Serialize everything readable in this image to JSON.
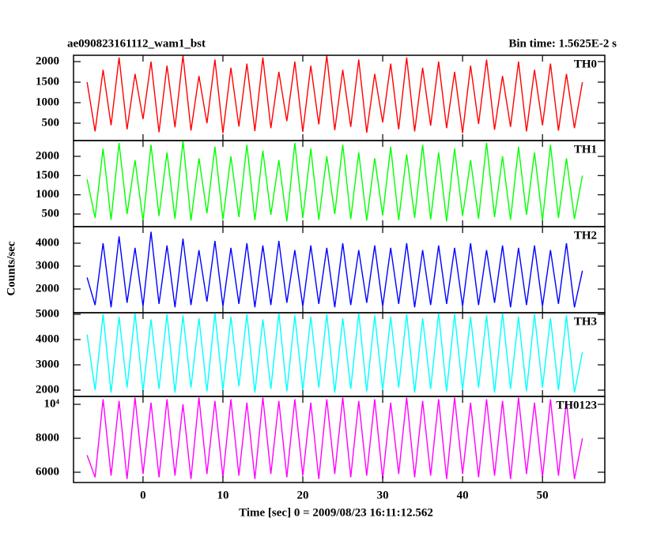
{
  "chart_data": {
    "type": "line",
    "title": "ae090823161112_wam1_bst",
    "subtitle": "Bin time: 1.5625E-2 s",
    "xlabel": "Time [sec] 0 = 2009/08/23 16:11:12.562",
    "ylabel": "Counts/sec",
    "xlim": [
      -8.7,
      57.8
    ],
    "xticks": [
      0,
      10,
      20,
      30,
      40,
      50
    ],
    "x": [
      -7,
      -6,
      -5,
      -4,
      -3,
      -2,
      -1,
      0,
      1,
      2,
      3,
      4,
      5,
      6,
      7,
      8,
      9,
      10,
      11,
      12,
      13,
      14,
      15,
      16,
      17,
      18,
      19,
      20,
      21,
      22,
      23,
      24,
      25,
      26,
      27,
      28,
      29,
      30,
      31,
      32,
      33,
      34,
      35,
      36,
      37,
      38,
      39,
      40,
      41,
      42,
      43,
      44,
      45,
      46,
      47,
      48,
      49,
      50,
      51,
      52,
      53,
      54,
      55
    ],
    "series": [
      {
        "name": "TH0",
        "color": "#ff0000",
        "ylim": [
          77,
          2154
        ],
        "yticks": [
          500,
          1000,
          1500,
          2000
        ],
        "values": [
          1500,
          300,
          1800,
          450,
          2100,
          350,
          1700,
          600,
          2000,
          280,
          1900,
          400,
          2150,
          320,
          1650,
          500,
          2050,
          260,
          1850,
          420,
          1950,
          310,
          2100,
          380,
          1750,
          550,
          2000,
          290,
          1900,
          470,
          2150,
          330,
          1800,
          410,
          2050,
          270,
          1700,
          520,
          1950,
          350,
          2100,
          300,
          1850,
          440,
          2000,
          380,
          1750,
          260,
          1900,
          480,
          2050,
          340,
          1650,
          410,
          2000,
          300,
          1800,
          450,
          1950,
          320,
          1700,
          380,
          1500
        ]
      },
      {
        "name": "TH1",
        "color": "#00ff00",
        "ylim": [
          172,
          2410
        ],
        "yticks": [
          500,
          1000,
          1500,
          2000
        ],
        "values": [
          1400,
          400,
          2200,
          350,
          2350,
          500,
          1900,
          320,
          2300,
          450,
          2100,
          380,
          2400,
          330,
          1950,
          520,
          2250,
          360,
          2000,
          420,
          2300,
          340,
          2150,
          480,
          1900,
          310,
          2350,
          400,
          2200,
          350,
          2000,
          500,
          2300,
          370,
          2100,
          330,
          1950,
          460,
          2250,
          340,
          2050,
          400,
          2300,
          360,
          2100,
          310,
          2200,
          450,
          1900,
          380,
          2350,
          420,
          2000,
          350,
          2250,
          480,
          2100,
          330,
          2300,
          400,
          1950,
          370,
          1500
        ]
      },
      {
        "name": "TH2",
        "color": "#0000ff",
        "ylim": [
          965,
          4724
        ],
        "yticks": [
          2000,
          3000,
          4000
        ],
        "values": [
          2500,
          1300,
          4000,
          1200,
          4300,
          1400,
          3800,
          1250,
          4500,
          1350,
          3900,
          1200,
          4200,
          1300,
          3700,
          1450,
          4100,
          1250,
          3800,
          1350,
          4000,
          1200,
          3900,
          1300,
          4100,
          1400,
          3700,
          1250,
          3900,
          1350,
          3800,
          1200,
          4000,
          1300,
          3700,
          1400,
          3900,
          1250,
          3800,
          1350,
          4000,
          1200,
          3700,
          1300,
          3900,
          1350,
          3800,
          1250,
          4000,
          1300,
          3700,
          1400,
          3900,
          1200,
          3800,
          1300,
          3900,
          1250,
          3700,
          1350,
          4000,
          1200,
          2800
        ]
      },
      {
        "name": "TH3",
        "color": "#00ffff",
        "ylim": [
          1750,
          5062
        ],
        "yticks": [
          2000,
          3000,
          4000,
          5000
        ],
        "values": [
          4200,
          2000,
          5000,
          1900,
          4900,
          2100,
          5050,
          1950,
          4800,
          2050,
          5000,
          1900,
          4950,
          2100,
          4850,
          1950,
          5050,
          2000,
          4900,
          2150,
          5000,
          1900,
          4800,
          2050,
          5050,
          1950,
          4950,
          2000,
          4900,
          2100,
          5000,
          1900,
          4850,
          2050,
          5050,
          1950,
          4950,
          2000,
          4900,
          2100,
          5000,
          1900,
          4850,
          2050,
          5050,
          1950,
          5000,
          2000,
          4900,
          2100,
          4950,
          1900,
          5050,
          2050,
          4900,
          1950,
          5000,
          2100,
          4850,
          2000,
          4950,
          1900,
          3500
        ]
      },
      {
        "name": "TH0123",
        "color": "#ff00ff",
        "ylim": [
          5395,
          10465
        ],
        "yticks": [
          6000,
          8000,
          {
            "value": 10000,
            "label": "10⁴"
          }
        ],
        "values": [
          7000,
          5700,
          10300,
          5800,
          10200,
          5600,
          10400,
          5900,
          10100,
          5700,
          10300,
          5800,
          10000,
          5600,
          10400,
          5900,
          10200,
          5700,
          10300,
          5800,
          10100,
          5600,
          10400,
          5900,
          10200,
          5700,
          10300,
          5800,
          10100,
          5600,
          10300,
          5900,
          10400,
          5700,
          10200,
          5800,
          10300,
          5600,
          10100,
          5900,
          10400,
          5700,
          10200,
          5800,
          10300,
          5600,
          10400,
          5900,
          10100,
          5700,
          10300,
          5800,
          10200,
          5600,
          10400,
          5900,
          10100,
          5700,
          10300,
          5800,
          10200,
          5600,
          8000
        ]
      }
    ]
  }
}
